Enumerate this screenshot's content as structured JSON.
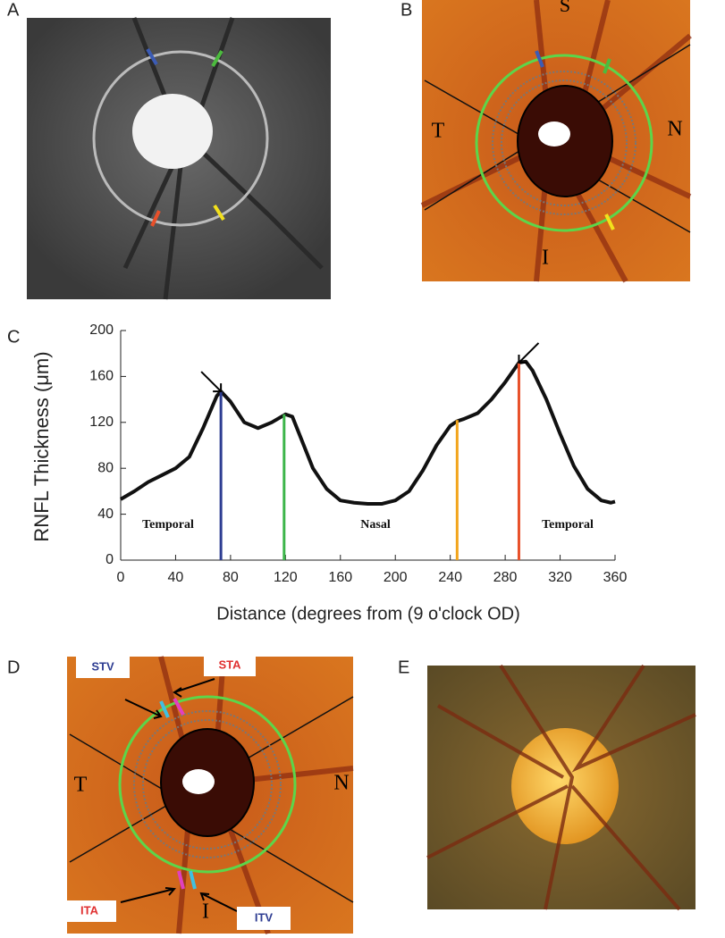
{
  "panel_labels": [
    "A",
    "B",
    "C",
    "D",
    "E"
  ],
  "panel_b": {
    "labels": [
      "S",
      "T",
      "N",
      "I"
    ]
  },
  "panel_d": {
    "labels": [
      "T",
      "N",
      "I"
    ],
    "vessel_labels": [
      "STV",
      "STA",
      "ITA",
      "ITV"
    ]
  },
  "chart_data": {
    "type": "line",
    "y_label": "RNFL Thickness (μm)",
    "x_label": "Distance (degrees from (9 o'clock OD)",
    "x": [
      0,
      10,
      20,
      30,
      40,
      50,
      60,
      70,
      73,
      80,
      90,
      100,
      110,
      120,
      125,
      130,
      140,
      150,
      160,
      170,
      180,
      190,
      200,
      210,
      220,
      230,
      240,
      245,
      250,
      260,
      270,
      280,
      290,
      295,
      300,
      310,
      320,
      330,
      340,
      350,
      357,
      360
    ],
    "values": [
      53,
      60,
      68,
      74,
      80,
      90,
      115,
      143,
      147,
      138,
      120,
      115,
      120,
      127,
      125,
      110,
      80,
      62,
      52,
      50,
      49,
      49,
      52,
      60,
      78,
      100,
      117,
      121,
      123,
      128,
      140,
      155,
      172,
      173,
      165,
      140,
      110,
      82,
      62,
      52,
      50,
      51
    ],
    "color": "#111111",
    "xlim": [
      0,
      360
    ],
    "ylim": [
      0,
      200
    ],
    "xticks": [
      0,
      40,
      80,
      120,
      160,
      200,
      240,
      280,
      320,
      360
    ],
    "yticks": [
      0,
      40,
      80,
      120,
      160,
      200
    ],
    "markers": [
      {
        "x": 73,
        "y": 147,
        "color": "#2e3d92"
      },
      {
        "x": 119,
        "y": 127,
        "color": "#3cb54a"
      },
      {
        "x": 245,
        "y": 122,
        "color": "#f2a51c"
      },
      {
        "x": 290,
        "y": 172,
        "color": "#e8502a"
      }
    ],
    "annotations": [
      "Temporal",
      "Nasal",
      "Temporal"
    ]
  }
}
